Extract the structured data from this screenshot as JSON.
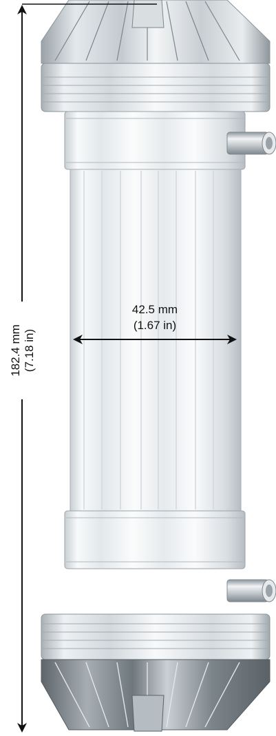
{
  "height_dimension": {
    "primary": "182.4 mm",
    "secondary": "(7.18 in)"
  },
  "diameter_dimension": {
    "primary": "42.5 mm",
    "secondary": "(1.67 in)"
  }
}
